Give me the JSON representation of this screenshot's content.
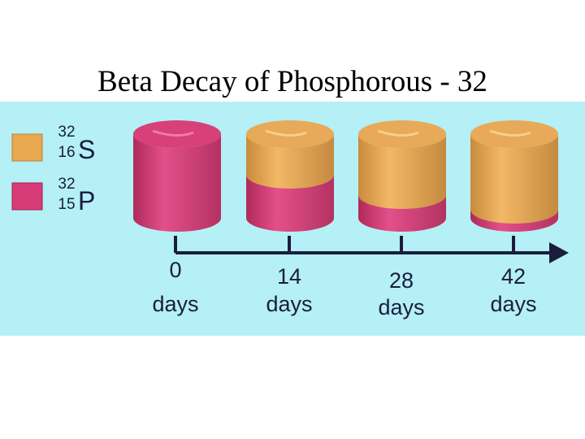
{
  "header": {
    "title": "Beta Decay of Phosphorous - 32"
  },
  "legend": [
    {
      "mass": "32",
      "atomic": "16",
      "symbol": "S"
    },
    {
      "mass": "32",
      "atomic": "15",
      "symbol": "P"
    }
  ],
  "timeline": [
    {
      "value": "0",
      "unit": "days"
    },
    {
      "value": "14",
      "unit": "days"
    },
    {
      "value": "28",
      "unit": "days"
    },
    {
      "value": "42",
      "unit": "days"
    }
  ]
}
